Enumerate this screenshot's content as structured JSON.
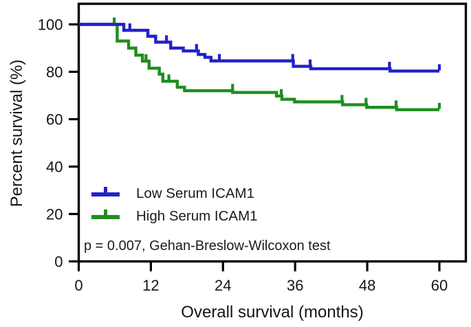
{
  "chart_data": {
    "type": "line",
    "subtype": "kaplan-meier-step",
    "title": "",
    "xlabel": "Overall survival (months)",
    "ylabel": "Percent survival (%)",
    "xlim": [
      0,
      60
    ],
    "ylim": [
      0,
      100
    ],
    "x_ticks": [
      0,
      12,
      24,
      36,
      48,
      60
    ],
    "y_ticks": [
      0,
      20,
      40,
      60,
      80,
      100
    ],
    "grid": false,
    "legend_position": "lower-left-inside",
    "frame_color": "#000000",
    "annotation": "p = 0.007, Gehan-Breslow-Wilcoxon test",
    "series": [
      {
        "name": "Low Serum ICAM1",
        "color": "#2222c8",
        "points": [
          [
            0,
            100
          ],
          [
            7.5,
            97.5
          ],
          [
            11.5,
            95
          ],
          [
            12.8,
            92.5
          ],
          [
            15.3,
            90
          ],
          [
            17.4,
            88.8
          ],
          [
            19.9,
            87.3
          ],
          [
            21,
            86.1
          ],
          [
            22,
            84.6
          ],
          [
            35.7,
            82.3
          ],
          [
            38.6,
            81.3
          ],
          [
            51.8,
            80.3
          ],
          [
            60,
            80.3
          ]
        ],
        "censor_ticks": [
          [
            8.5,
            97.5
          ],
          [
            14.6,
            92.5
          ],
          [
            19.6,
            88.8
          ],
          [
            23.4,
            84.6
          ],
          [
            35.6,
            84.6
          ],
          [
            38.5,
            82.3
          ],
          [
            51.7,
            81.3
          ],
          [
            60,
            80.3
          ]
        ]
      },
      {
        "name": "High Serum ICAM1",
        "color": "#1e8e1e",
        "points": [
          [
            0,
            100
          ],
          [
            6.4,
            93
          ],
          [
            8.3,
            90
          ],
          [
            9.5,
            87
          ],
          [
            10.6,
            84.5
          ],
          [
            11.7,
            81.5
          ],
          [
            13.4,
            79
          ],
          [
            14,
            76
          ],
          [
            16.4,
            73.5
          ],
          [
            17.6,
            72
          ],
          [
            25.6,
            71.3
          ],
          [
            32.9,
            69.8
          ],
          [
            33.8,
            68.4
          ],
          [
            35.9,
            67.3
          ],
          [
            43.9,
            66.1
          ],
          [
            47.9,
            65
          ],
          [
            52.9,
            64
          ],
          [
            60,
            64
          ]
        ],
        "censor_ticks": [
          [
            5.9,
            100
          ],
          [
            11.2,
            84.5
          ],
          [
            15,
            76
          ],
          [
            25.6,
            72
          ],
          [
            33.7,
            69.8
          ],
          [
            43.8,
            67.3
          ],
          [
            47.8,
            66.1
          ],
          [
            52.8,
            65
          ],
          [
            60,
            64
          ]
        ]
      }
    ]
  }
}
